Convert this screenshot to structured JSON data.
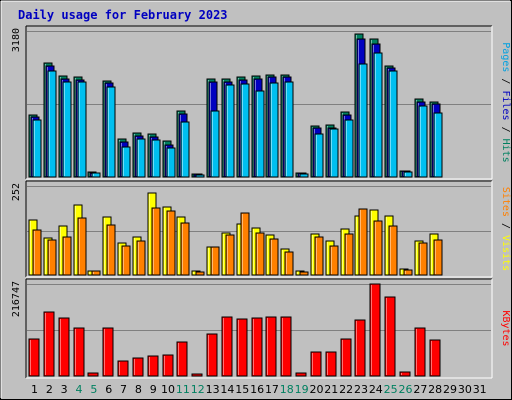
{
  "chart_data": {
    "type": "bar",
    "title": "Daily usage for February 2023",
    "categories": [
      "1",
      "2",
      "3",
      "4",
      "5",
      "6",
      "7",
      "8",
      "9",
      "10",
      "11",
      "12",
      "13",
      "14",
      "15",
      "16",
      "17",
      "18",
      "19",
      "20",
      "21",
      "22",
      "23",
      "24",
      "25",
      "26",
      "27",
      "28",
      "29",
      "30",
      "31"
    ],
    "weekend_days": [
      "4",
      "5",
      "11",
      "12",
      "18",
      "19",
      "25",
      "26"
    ],
    "panels": [
      {
        "id": "hits",
        "ymax_label": "3180",
        "ylim": [
          0,
          3180
        ],
        "right_label": [
          {
            "text": "Pages",
            "color": "#00a0e0"
          },
          {
            "text": " / ",
            "color": "#000000"
          },
          {
            "text": "Files",
            "color": "#0000c0"
          },
          {
            "text": " / ",
            "color": "#000000"
          },
          {
            "text": "Hits",
            "color": "#008060"
          }
        ],
        "series": [
          {
            "name": "Hits",
            "color": "#008060",
            "values": [
              1350,
              2480,
              2200,
              2180,
              100,
              2100,
              820,
              960,
              930,
              780,
              1430,
              60,
              2140,
              2140,
              2180,
              2200,
              2230,
              2230,
              90,
              1110,
              1130,
              1420,
              3120,
              3000,
              2420,
              140,
              1690,
              1640,
              0,
              0,
              0
            ]
          },
          {
            "name": "Files",
            "color": "#0000c0",
            "values": [
              1300,
              2420,
              2130,
              2120,
              90,
              2040,
              760,
              890,
              870,
              700,
              1370,
              55,
              2080,
              2080,
              2120,
              2140,
              2170,
              2170,
              80,
              1060,
              1070,
              1360,
              3000,
              2900,
              2380,
              130,
              1630,
              1580,
              0,
              0,
              0
            ]
          },
          {
            "name": "Pages",
            "color": "#00bff0",
            "values": [
              1250,
              2300,
              2060,
              2060,
              80,
              1970,
              660,
              830,
              800,
              630,
              1190,
              50,
              1430,
              2010,
              2030,
              1880,
              2040,
              2080,
              60,
              940,
              1040,
              1240,
              2460,
              2710,
              2300,
              110,
              1540,
              1400,
              0,
              0,
              0
            ]
          }
        ]
      },
      {
        "id": "visits",
        "ymax_label": "252",
        "ylim": [
          0,
          252
        ],
        "right_label": [
          {
            "text": "Sites",
            "color": "#ff8000"
          },
          {
            "text": " / ",
            "color": "#000000"
          },
          {
            "text": "Visits",
            "color": "#ffff00"
          }
        ],
        "series": [
          {
            "name": "Visits",
            "color": "#ffff00",
            "values": [
              155,
              106,
              140,
              198,
              12,
              164,
              90,
              109,
              232,
              193,
              165,
              10,
              80,
              118,
              143,
              132,
              113,
              74,
              10,
              116,
              97,
              130,
              168,
              183,
              166,
              17,
              95,
              116,
              0,
              0,
              0
            ]
          },
          {
            "name": "Sites",
            "color": "#ff8000",
            "values": [
              126,
              100,
              108,
              160,
              10,
              142,
              82,
              97,
              190,
              180,
              148,
              8,
              78,
              112,
              175,
              118,
              103,
              66,
              8,
              108,
              82,
              117,
              188,
              153,
              138,
              14,
              92,
              100,
              0,
              0,
              0
            ]
          }
        ]
      },
      {
        "id": "kbytes",
        "ymax_label": "216747",
        "ylim": [
          0,
          216747
        ],
        "right_label": [
          {
            "text": "KBytes",
            "color": "#ff0000"
          }
        ],
        "series": [
          {
            "name": "KBytes",
            "color": "#ff0000",
            "values": [
              88000,
              150000,
              136000,
              113000,
              6000,
              112000,
              36000,
              43000,
              47000,
              49000,
              80000,
              5000,
              98000,
              139000,
              135000,
              137000,
              140000,
              139000,
              6000,
              57000,
              57000,
              88000,
              131000,
              216747,
              185000,
              9000,
              112000,
              85000,
              0,
              0,
              0
            ]
          }
        ]
      }
    ]
  }
}
